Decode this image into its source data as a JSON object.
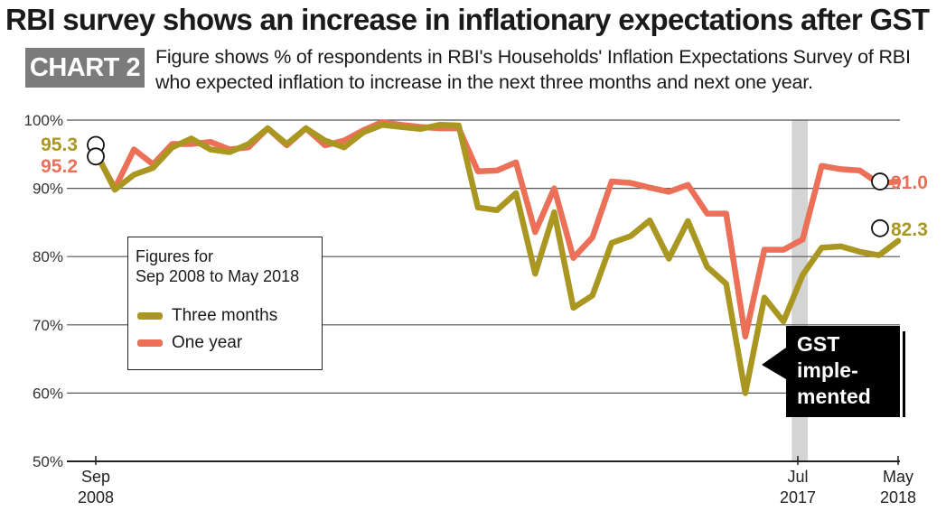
{
  "title": "RBI survey shows an increase in inflationary expectations after GST",
  "chart_tag": "CHART 2",
  "subtitle": "Figure shows % of respondents in RBI's Households' Inflation Expectations Survey of RBI who expected inflation to increase in the next three months and next one year.",
  "legend": {
    "heading": "Figures for\nSep 2008 to May 2018",
    "items": [
      {
        "label": "Three months",
        "color": "#a99722"
      },
      {
        "label": "One year",
        "color": "#ec6f58"
      }
    ]
  },
  "annotation": {
    "text": "GST\nimple-\nmented"
  },
  "colors": {
    "three_months": "#a99722",
    "one_year": "#ec6f58",
    "gst_band": "#d4d4d4",
    "grid": "#555555"
  },
  "chart_data": {
    "type": "line",
    "title": "RBI survey shows an increase in inflationary expectations after GST",
    "ylim": [
      50,
      100
    ],
    "ytick_labels": [
      "50%",
      "60%",
      "70%",
      "80%",
      "90%",
      "100%"
    ],
    "xlim": [
      0,
      40
    ],
    "x_tick_labels": [
      {
        "x": 0,
        "line1": "Sep",
        "line2": "2008"
      },
      {
        "x": 35,
        "line1": "Jul",
        "line2": "2017"
      },
      {
        "x": 40,
        "line1": "May",
        "line2": "2018"
      }
    ],
    "gst_band_x": [
      34.7,
      35.5
    ],
    "grid": true,
    "series": [
      {
        "name": "Three months",
        "key": "three_months",
        "values": [
          95.3,
          89.8,
          92.0,
          93.0,
          96.0,
          97.3,
          95.7,
          95.3,
          96.5,
          98.8,
          96.5,
          98.8,
          97.0,
          96.0,
          98.2,
          99.3,
          99.0,
          98.7,
          99.3,
          99.2,
          87.2,
          86.8,
          89.3,
          77.5,
          86.5,
          72.5,
          74.3,
          82.0,
          83.0,
          85.3,
          79.7,
          85.2,
          78.5,
          76.0,
          60.0,
          74.0,
          70.5,
          77.3,
          81.3,
          81.5,
          80.7,
          80.2,
          82.3
        ],
        "start_label": "95.3",
        "end_label": "82.3"
      },
      {
        "name": "One year",
        "key": "one_year",
        "values": [
          95.2,
          90.0,
          95.7,
          93.5,
          96.5,
          96.5,
          96.8,
          95.7,
          96.0,
          98.8,
          96.3,
          98.8,
          96.3,
          97.0,
          98.5,
          99.7,
          99.3,
          99.0,
          98.8,
          98.8,
          92.5,
          92.6,
          93.8,
          83.6,
          90.0,
          79.8,
          82.8,
          91.0,
          90.8,
          90.1,
          89.5,
          90.5,
          86.3,
          86.3,
          68.3,
          81.0,
          81.0,
          82.5,
          93.3,
          92.8,
          92.6,
          90.7,
          91.0
        ],
        "start_label": "95.2",
        "end_label": "91.0"
      }
    ]
  }
}
